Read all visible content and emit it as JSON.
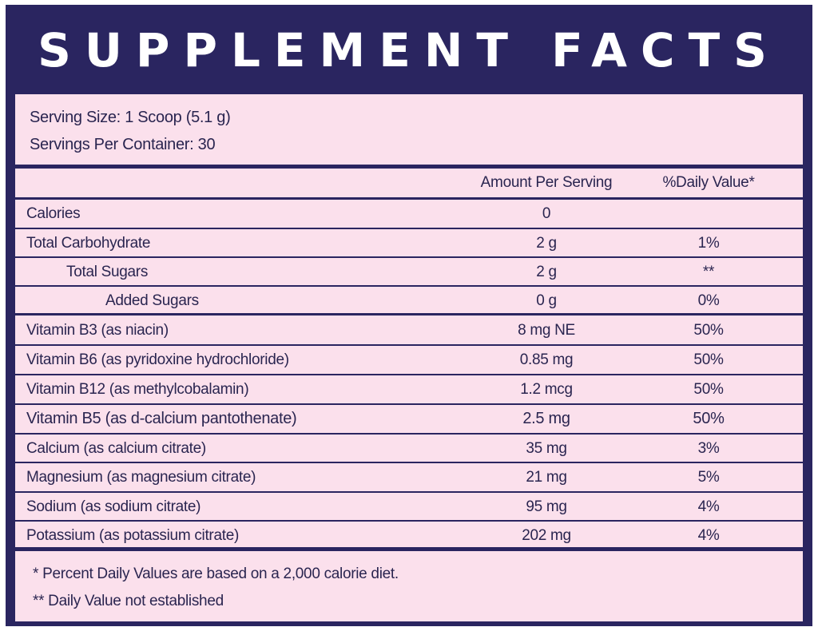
{
  "title": "SUPPLEMENT FACTS",
  "serving_size": "Serving Size: 1 Scoop (5.1 g)",
  "servings_per_container": "Servings Per Container: 30",
  "columns": {
    "amount": "Amount Per Serving",
    "daily_value": "%Daily Value*"
  },
  "nutrients": [
    {
      "name": "Calories",
      "amount": "0",
      "dv": "",
      "indent": 0
    },
    {
      "name": "Total Carbohydrate",
      "amount": "2 g",
      "dv": "1%",
      "indent": 0
    },
    {
      "name": "Total Sugars",
      "amount": "2 g",
      "dv": "**",
      "indent": 1
    },
    {
      "name": "Added Sugars",
      "amount": "0 g",
      "dv": "0%",
      "indent": 2
    }
  ],
  "vitamins_minerals": [
    {
      "name": "Vitamin B3 (as niacin)",
      "amount": "8 mg NE",
      "dv": "50%"
    },
    {
      "name": "Vitamin B6 (as pyridoxine hydrochloride)",
      "amount": "0.85 mg",
      "dv": "50%"
    },
    {
      "name": "Vitamin B12 (as methylcobalamin)",
      "amount": "1.2 mcg",
      "dv": "50%"
    },
    {
      "name": "Vitamin B5 (as d-calcium pantothenate)",
      "amount": "2.5 mg",
      "dv": "50%"
    },
    {
      "name": "Calcium (as calcium citrate)",
      "amount": "35 mg",
      "dv": "3%"
    },
    {
      "name": "Magnesium (as magnesium citrate)",
      "amount": "21 mg",
      "dv": "5%"
    },
    {
      "name": "Sodium (as sodium citrate)",
      "amount": "95 mg",
      "dv": "4%"
    },
    {
      "name": "Potassium (as potassium citrate)",
      "amount": "202 mg",
      "dv": "4%"
    }
  ],
  "footnotes": [
    "* Percent Daily Values are based on a 2,000 calorie diet.",
    "** Daily Value not established"
  ],
  "colors": {
    "navy": "#2a2560",
    "pink": "#fbe0ec",
    "title_text": "#ffffff"
  }
}
